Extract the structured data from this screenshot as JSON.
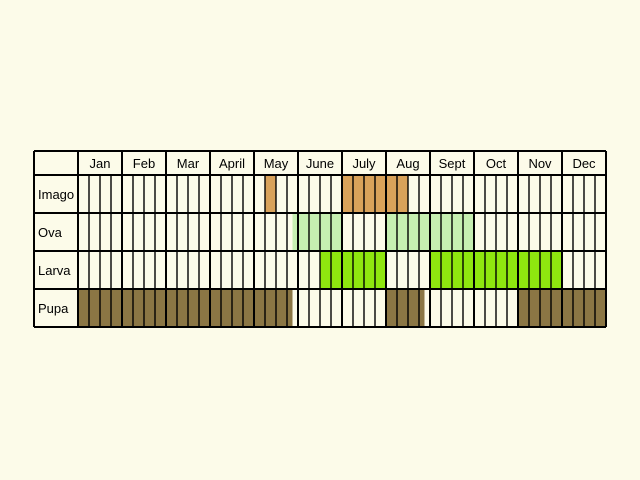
{
  "chart_data": {
    "type": "table",
    "months": [
      "Jan",
      "Feb",
      "Mar",
      "Apr",
      "May",
      "June",
      "July",
      "Aug",
      "Sept",
      "Oct",
      "Nov",
      "Dec"
    ],
    "month_labels": [
      "Jan",
      "Feb",
      "Mar",
      "April",
      "May",
      "June",
      "July",
      "Aug",
      "Sept",
      "Oct",
      "Nov",
      "Dec"
    ],
    "weeks_per_month": 4,
    "cell_background": "#fcfbe9",
    "stages": [
      {
        "key": "imago",
        "label": "Imago",
        "color": "#d9a25a",
        "periods": [
          {
            "start": 17.0,
            "end": 17.5
          },
          {
            "start": 17.5,
            "end": 18.0
          },
          {
            "start": 24.0,
            "end": 24.5
          },
          {
            "start": 24.5,
            "end": 30.0
          }
        ]
      },
      {
        "key": "ova",
        "label": "Ova",
        "color": "#c6efb1",
        "periods": [
          {
            "start": 19.5,
            "end": 24.0
          },
          {
            "start": 28.0,
            "end": 32.0
          },
          {
            "start": 32.0,
            "end": 36.0
          }
        ]
      },
      {
        "key": "larva",
        "label": "Larva",
        "color": "#8fe60f",
        "periods": [
          {
            "start": 22.0,
            "end": 28.0
          },
          {
            "start": 32.0,
            "end": 44.0
          }
        ]
      },
      {
        "key": "pupa",
        "label": "Pupa",
        "color": "#8b7644",
        "periods": [
          {
            "start": 0.0,
            "end": 19.5
          },
          {
            "start": 28.0,
            "end": 31.5
          },
          {
            "start": 40.0,
            "end": 48.0
          }
        ]
      }
    ]
  }
}
